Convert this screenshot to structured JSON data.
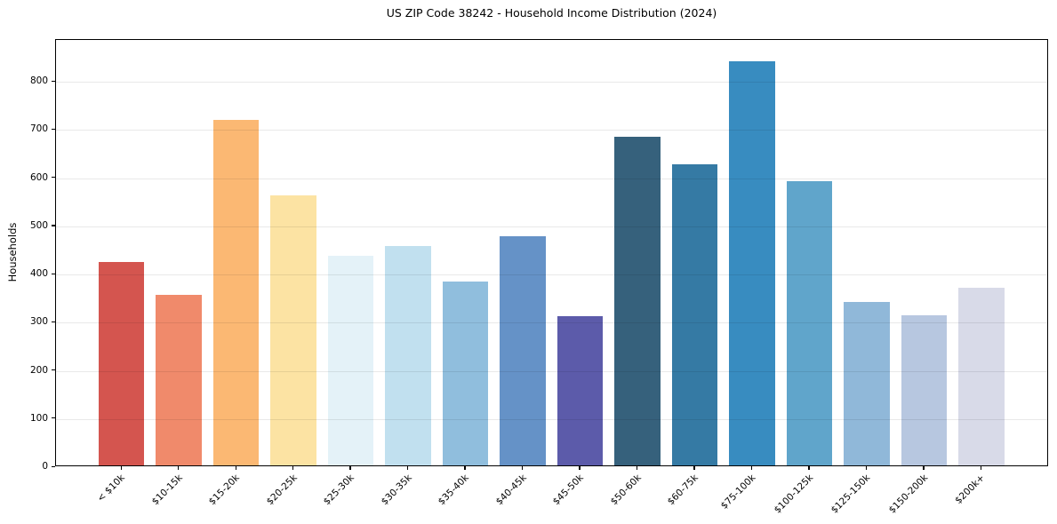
{
  "chart_data": {
    "type": "bar",
    "title": "US ZIP Code 38242 - Household Income Distribution (2024)",
    "xlabel": "",
    "ylabel": "Households",
    "categories": [
      "< $10k",
      "$10-15k",
      "$15-20k",
      "$20-25k",
      "$25-30k",
      "$30-35k",
      "$35-40k",
      "$40-45k",
      "$45-50k",
      "$50-60k",
      "$60-75k",
      "$75-100k",
      "$100-125k",
      "$125-150k",
      "$150-200k",
      "$200k+"
    ],
    "values": [
      422,
      355,
      718,
      560,
      436,
      455,
      382,
      475,
      309,
      683,
      625,
      840,
      591,
      339,
      312,
      369
    ],
    "colors": [
      "#d4554f",
      "#f08a6b",
      "#fbb873",
      "#fce3a3",
      "#e4f2f8",
      "#c1e0ef",
      "#90bedd",
      "#6592c7",
      "#5c5baa",
      "#36617c",
      "#357aa4",
      "#388cc0",
      "#60a5cb",
      "#90b8d9",
      "#b7c7e0",
      "#d8dae8"
    ],
    "yticks": [
      0,
      100,
      200,
      300,
      400,
      500,
      600,
      700,
      800
    ],
    "ylim": [
      0,
      887
    ],
    "xlim": [
      -1.14,
      16.18
    ],
    "bar_width": 0.8,
    "grid": "horizontal-over-bars",
    "legend": "none",
    "frame": "full-black-box",
    "x_tick_rotation_deg": 45
  }
}
